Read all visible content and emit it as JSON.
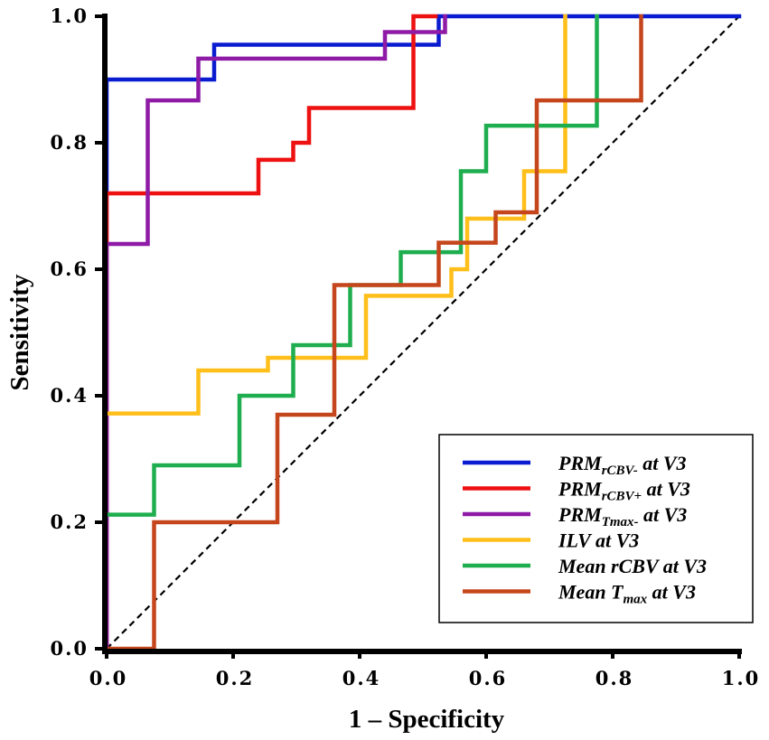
{
  "chart_data": {
    "type": "line",
    "title": "",
    "xlabel": "1 – Specificity",
    "ylabel": "Sensitivity",
    "xlim": [
      0,
      1
    ],
    "ylim": [
      0,
      1
    ],
    "grid": false,
    "legend_position": "bottom-right",
    "x_tick_labels": [
      "0.0",
      "0.2",
      "0.4",
      "0.6",
      "0.8",
      "1.0"
    ],
    "y_tick_labels": [
      "0.0",
      "0.2",
      "0.4",
      "0.6",
      "0.8",
      "1.0"
    ],
    "reference_line": {
      "name": "chance",
      "style": "dashed",
      "color": "#000000",
      "x": [
        0,
        1
      ],
      "y": [
        0,
        1
      ]
    },
    "series": [
      {
        "name": "PRMrCBV- at V3",
        "label_main": "PRM",
        "label_sub": "rCBV-",
        "label_rest": " at V3",
        "color": "#0a1cd0",
        "points": [
          [
            0,
            0
          ],
          [
            0,
            0.9
          ],
          [
            0.17,
            0.9
          ],
          [
            0.17,
            0.955
          ],
          [
            0.525,
            0.955
          ],
          [
            0.525,
            1.0
          ],
          [
            1.0,
            1.0
          ]
        ]
      },
      {
        "name": "PRMrCBV+ at V3",
        "label_main": "PRM",
        "label_sub": "rCBV+",
        "label_rest": " at V3",
        "color": "#ee1111",
        "points": [
          [
            0,
            0
          ],
          [
            0,
            0.72
          ],
          [
            0.24,
            0.72
          ],
          [
            0.24,
            0.773
          ],
          [
            0.295,
            0.773
          ],
          [
            0.295,
            0.8
          ],
          [
            0.32,
            0.8
          ],
          [
            0.32,
            0.855
          ],
          [
            0.485,
            0.855
          ],
          [
            0.485,
            1.0
          ],
          [
            0.52,
            1.0
          ]
        ]
      },
      {
        "name": "PRMTmax- at V3",
        "label_main": "PRM",
        "label_sub": "Tmax-",
        "label_rest": " at V3",
        "color": "#8e1aa6",
        "points": [
          [
            0,
            0
          ],
          [
            0,
            0.64
          ],
          [
            0.065,
            0.64
          ],
          [
            0.065,
            0.867
          ],
          [
            0.145,
            0.867
          ],
          [
            0.145,
            0.933
          ],
          [
            0.44,
            0.933
          ],
          [
            0.44,
            0.975
          ],
          [
            0.535,
            0.975
          ],
          [
            0.535,
            1.0
          ]
        ]
      },
      {
        "name": "ILV at V3",
        "label_main": "ILV at V3",
        "label_sub": "",
        "label_rest": "",
        "color": "#ffbf1a",
        "points": [
          [
            0,
            0.372
          ],
          [
            0.145,
            0.372
          ],
          [
            0.145,
            0.44
          ],
          [
            0.255,
            0.44
          ],
          [
            0.255,
            0.46
          ],
          [
            0.41,
            0.46
          ],
          [
            0.41,
            0.558
          ],
          [
            0.545,
            0.558
          ],
          [
            0.545,
            0.6
          ],
          [
            0.57,
            0.6
          ],
          [
            0.57,
            0.68
          ],
          [
            0.66,
            0.68
          ],
          [
            0.66,
            0.755
          ],
          [
            0.725,
            0.755
          ],
          [
            0.725,
            1.0
          ]
        ]
      },
      {
        "name": "Mean rCBV at V3",
        "label_main": "Mean rCBV at V3",
        "label_sub": "",
        "label_rest": "",
        "color": "#1fae4f",
        "points": [
          [
            0,
            0.212
          ],
          [
            0.075,
            0.212
          ],
          [
            0.075,
            0.29
          ],
          [
            0.21,
            0.29
          ],
          [
            0.21,
            0.4
          ],
          [
            0.295,
            0.4
          ],
          [
            0.295,
            0.48
          ],
          [
            0.385,
            0.48
          ],
          [
            0.385,
            0.575
          ],
          [
            0.465,
            0.575
          ],
          [
            0.465,
            0.627
          ],
          [
            0.56,
            0.627
          ],
          [
            0.56,
            0.755
          ],
          [
            0.6,
            0.755
          ],
          [
            0.6,
            0.827
          ],
          [
            0.775,
            0.827
          ],
          [
            0.775,
            1.0
          ]
        ]
      },
      {
        "name": "Mean Tmax at V3",
        "label_main": "Mean T",
        "label_sub": "max",
        "label_rest": " at V3",
        "color": "#c5461c",
        "points": [
          [
            0,
            0
          ],
          [
            0.075,
            0
          ],
          [
            0.075,
            0.2
          ],
          [
            0.27,
            0.2
          ],
          [
            0.27,
            0.37
          ],
          [
            0.36,
            0.37
          ],
          [
            0.36,
            0.575
          ],
          [
            0.525,
            0.575
          ],
          [
            0.525,
            0.642
          ],
          [
            0.615,
            0.642
          ],
          [
            0.615,
            0.69
          ],
          [
            0.68,
            0.69
          ],
          [
            0.68,
            0.867
          ],
          [
            0.845,
            0.867
          ],
          [
            0.845,
            1.0
          ]
        ]
      }
    ]
  }
}
